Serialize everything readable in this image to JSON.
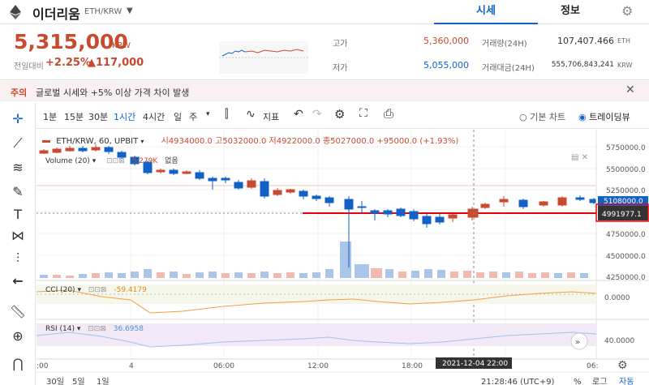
{
  "header": {
    "coin_name": "이더리움",
    "pair": "ETH/KRW",
    "tabs": [
      "시세",
      "정보"
    ],
    "active_tab": "시세"
  },
  "price": {
    "current": "5,315,000",
    "unit": "KRW",
    "prev_label": "전일대비",
    "change_pct": "+2.25%",
    "change_abs": "▲117,000"
  },
  "stats": {
    "high_label": "고가",
    "high_value": "5,360,000",
    "low_label": "저가",
    "low_value": "5,055,000",
    "volume_label": "거래량(24H)",
    "volume_value": "107,407.466",
    "volume_unit": "ETH",
    "amount_label": "거래대금(24H)",
    "amount_value": "555,706,843,241",
    "amount_unit": "KRW"
  },
  "notice": {
    "tag": "주의",
    "text": "글로벌 시세와 +5% 이상 가격 차이 발생"
  },
  "toolbar": {
    "intervals": [
      "1분",
      "15분",
      "30분",
      "1시간",
      "4시간",
      "일",
      "주"
    ],
    "active_interval": "1시간",
    "indicator_label": "지표",
    "basic_chart": "기본 차트",
    "tradingview": "트레이딩뷰"
  },
  "chart": {
    "symbol": "ETH/KRW, 60, UPBIT",
    "ohlc": "시4934000.0 고5032000.0 저4922000.0 종5027000.0 +95000.0 (+1.93%)",
    "volume_label": "Volume (20)",
    "volume_value": "5.279K",
    "volume_extra": "없음",
    "cci_label": "CCI (20)",
    "cci_value": "-59.4179",
    "rsi_label": "RSI (14)",
    "rsi_value": "36.6958",
    "price_axis": [
      "5750000.0",
      "5500000.0",
      "5250000.0",
      "5000000.0",
      "4750000.0",
      "4500000.0",
      "4250000.0"
    ],
    "current_price_tag": "5108000.0",
    "cursor_price_tag": "4991977.1",
    "cci_axis": "0.0000",
    "rsi_axis": "40.0000",
    "time_axis": [
      ":00",
      "4",
      "06:00",
      "12:00",
      "18:00",
      "06:"
    ],
    "cursor_time": "2021-12-04   22:00",
    "bottom_ranges": [
      "30일",
      "5일",
      "1일"
    ],
    "clock": "21:28:46 (UTC+9)",
    "pct": "%",
    "log": "로그",
    "auto": "자동"
  },
  "colors": {
    "up": "#c84a31",
    "down": "#1261c4",
    "cursor_line": "#e8000b"
  }
}
